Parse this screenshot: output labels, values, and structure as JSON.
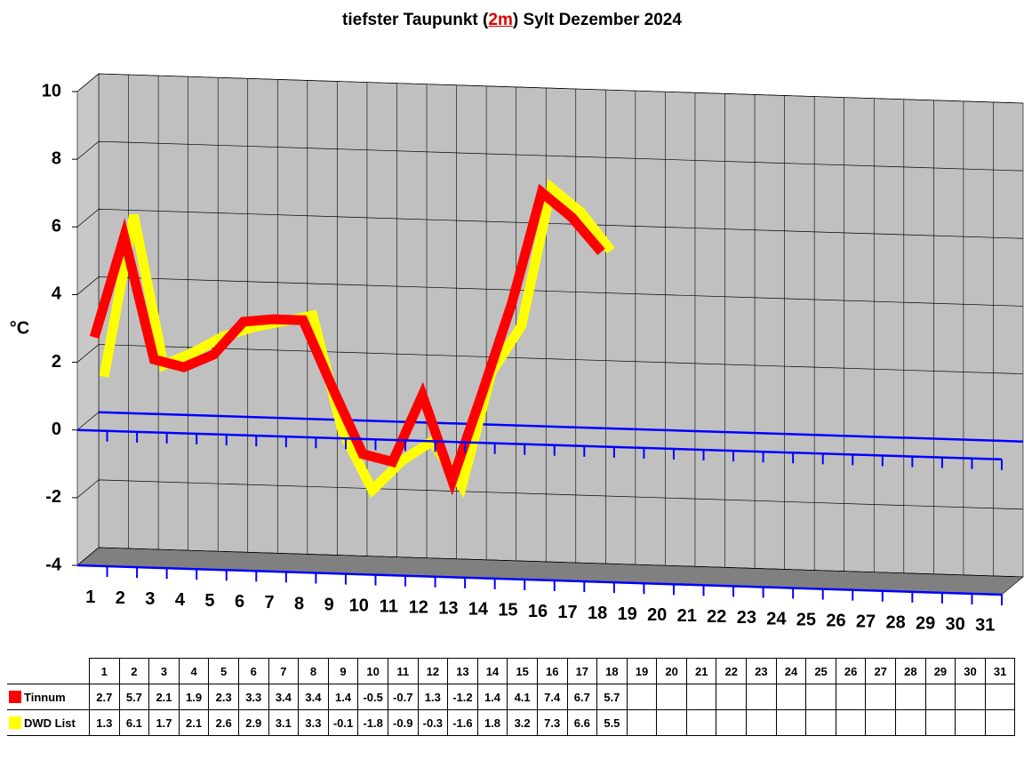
{
  "chart_data": {
    "type": "line",
    "title": [
      "tiefster Taupunkt (",
      "2m",
      ") Sylt Dezember 2024"
    ],
    "y_label": "°C",
    "categories": [
      "1",
      "2",
      "3",
      "4",
      "5",
      "6",
      "7",
      "8",
      "9",
      "10",
      "11",
      "12",
      "13",
      "14",
      "15",
      "16",
      "17",
      "18",
      "19",
      "20",
      "21",
      "22",
      "23",
      "24",
      "25",
      "26",
      "27",
      "28",
      "29",
      "30",
      "31"
    ],
    "series": [
      {
        "name": "Tinnum",
        "color": "#ff0000",
        "values": [
          2.7,
          5.7,
          2.1,
          1.9,
          2.3,
          3.3,
          3.4,
          3.4,
          1.4,
          -0.5,
          -0.7,
          1.3,
          -1.2,
          1.4,
          4.1,
          7.4,
          6.7,
          5.7,
          null,
          null,
          null,
          null,
          null,
          null,
          null,
          null,
          null,
          null,
          null,
          null,
          null
        ]
      },
      {
        "name": "DWD List",
        "color": "#ffff00",
        "values": [
          1.3,
          6.1,
          1.7,
          2.1,
          2.6,
          2.9,
          3.1,
          3.3,
          -0.1,
          -1.8,
          -0.9,
          -0.3,
          -1.6,
          1.8,
          3.2,
          7.3,
          6.6,
          5.5,
          null,
          null,
          null,
          null,
          null,
          null,
          null,
          null,
          null,
          null,
          null,
          null,
          null
        ]
      }
    ],
    "ylim": [
      -4,
      10
    ],
    "yticks": [
      -4,
      -2,
      0,
      2,
      4,
      6,
      8,
      10
    ],
    "grid": true
  }
}
